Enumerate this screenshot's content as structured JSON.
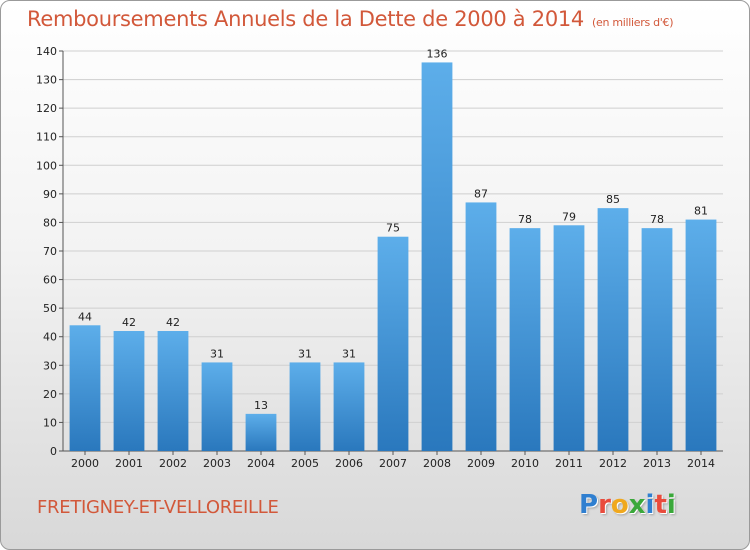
{
  "header": {
    "title": "Remboursements Annuels de la Dette de 2000 à 2014",
    "unit": "(en milliers d'€)"
  },
  "footer": {
    "commune": "FRETIGNEY-ET-VELLOREILLE",
    "logo_letters": [
      {
        "char": "P",
        "color": "#2f7fd0"
      },
      {
        "char": "r",
        "color": "#e94b3c"
      },
      {
        "char": "o",
        "color": "#f0a81e"
      },
      {
        "char": "x",
        "color": "#3aa83a"
      },
      {
        "char": "i",
        "color": "#2f7fd0"
      },
      {
        "char": "t",
        "color": "#e94b3c"
      },
      {
        "char": "i",
        "color": "#3aa83a"
      }
    ]
  },
  "colors": {
    "title": "#d2583a",
    "bar_light": "#5daeea",
    "bar_dark": "#2a78bd",
    "grid": "#cfcfcf",
    "axis_text": "#222222"
  },
  "chart_data": {
    "type": "bar",
    "categories": [
      "2000",
      "2001",
      "2002",
      "2003",
      "2004",
      "2005",
      "2006",
      "2007",
      "2008",
      "2009",
      "2010",
      "2011",
      "2012",
      "2013",
      "2014"
    ],
    "values": [
      44,
      42,
      42,
      31,
      13,
      31,
      31,
      75,
      136,
      87,
      78,
      79,
      85,
      78,
      81
    ],
    "ylim": [
      0,
      140
    ],
    "yticks": [
      0,
      10,
      20,
      30,
      40,
      50,
      60,
      70,
      80,
      90,
      100,
      110,
      120,
      130,
      140
    ],
    "grid": true,
    "data_labels": true
  }
}
